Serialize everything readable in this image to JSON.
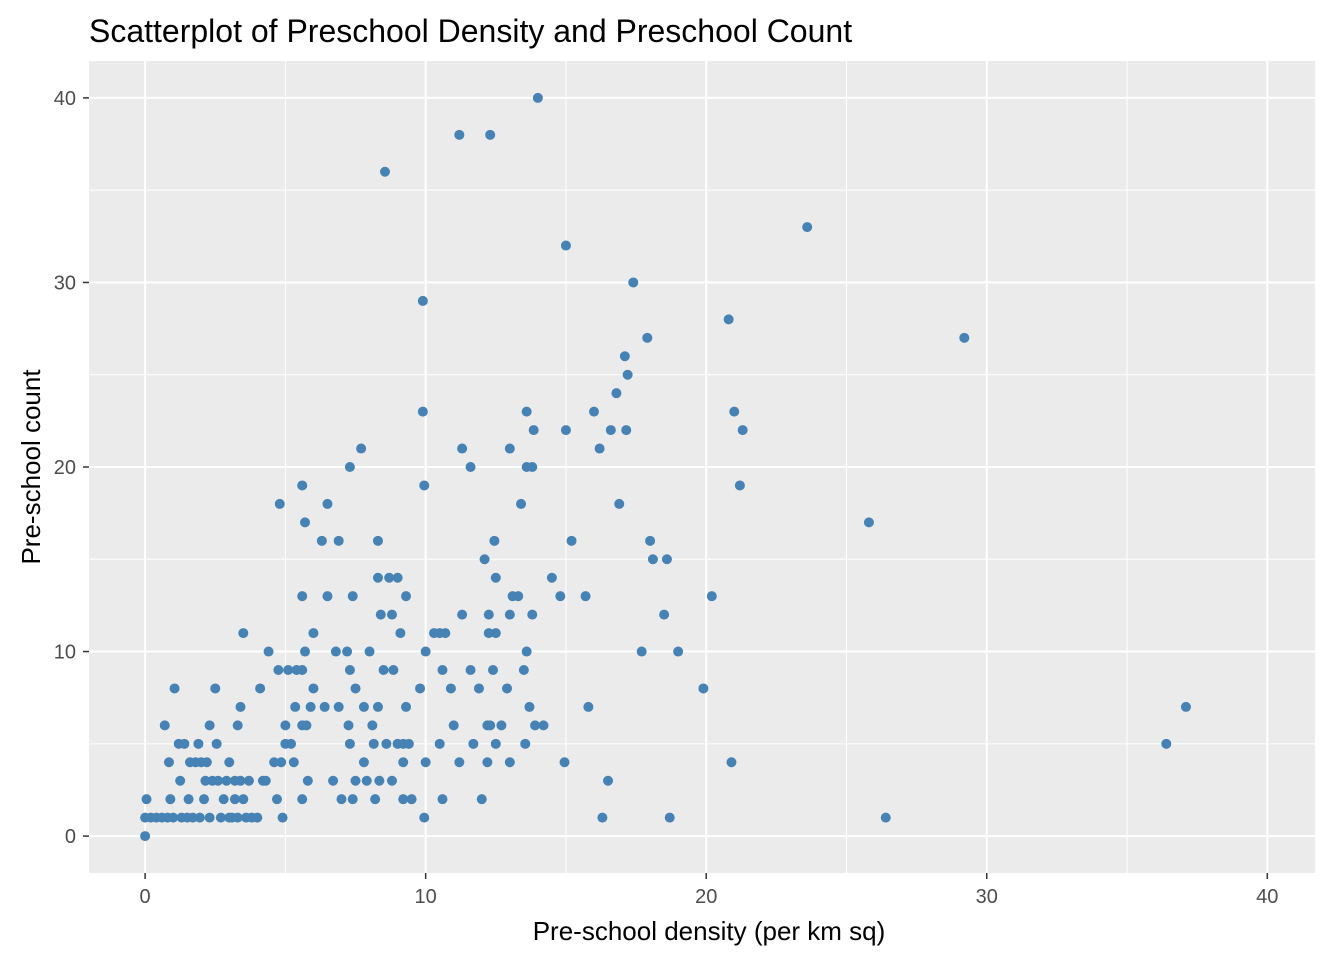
{
  "chart_data": {
    "type": "scatter",
    "title": "Scatterplot of Preschool Density and Preschool Count",
    "xlabel": "Pre-school density (per km sq)",
    "ylabel": "Pre-school count",
    "xlim": [
      -2.0,
      41.7
    ],
    "ylim": [
      -2.0,
      42.0
    ],
    "x_ticks": [
      0,
      10,
      20,
      30,
      40
    ],
    "y_ticks": [
      0,
      10,
      20,
      30,
      40
    ],
    "x_tick_labels": [
      "0",
      "10",
      "20",
      "30",
      "40"
    ],
    "y_tick_labels": [
      "0",
      "10",
      "20",
      "30",
      "40"
    ],
    "grid": true,
    "colors": {
      "point": "#4682b4",
      "panel": "#ebebeb",
      "grid": "#ffffff"
    },
    "points": [
      {
        "x": 0.0,
        "y": 0
      },
      {
        "x": 0.0,
        "y": 1
      },
      {
        "x": 0.05,
        "y": 2
      },
      {
        "x": 0.2,
        "y": 1
      },
      {
        "x": 0.4,
        "y": 1
      },
      {
        "x": 0.6,
        "y": 1
      },
      {
        "x": 0.7,
        "y": 6
      },
      {
        "x": 0.8,
        "y": 1
      },
      {
        "x": 0.85,
        "y": 4
      },
      {
        "x": 0.9,
        "y": 2
      },
      {
        "x": 1.0,
        "y": 1
      },
      {
        "x": 1.05,
        "y": 8
      },
      {
        "x": 1.2,
        "y": 5
      },
      {
        "x": 1.25,
        "y": 3
      },
      {
        "x": 1.3,
        "y": 1
      },
      {
        "x": 1.4,
        "y": 5
      },
      {
        "x": 1.5,
        "y": 1
      },
      {
        "x": 1.55,
        "y": 2
      },
      {
        "x": 1.6,
        "y": 4
      },
      {
        "x": 1.7,
        "y": 1
      },
      {
        "x": 1.8,
        "y": 4
      },
      {
        "x": 1.9,
        "y": 5
      },
      {
        "x": 1.95,
        "y": 1
      },
      {
        "x": 2.0,
        "y": 4
      },
      {
        "x": 2.1,
        "y": 2
      },
      {
        "x": 2.15,
        "y": 3
      },
      {
        "x": 2.2,
        "y": 4
      },
      {
        "x": 2.3,
        "y": 1
      },
      {
        "x": 2.3,
        "y": 6
      },
      {
        "x": 2.4,
        "y": 3
      },
      {
        "x": 2.5,
        "y": 8
      },
      {
        "x": 2.55,
        "y": 5
      },
      {
        "x": 2.6,
        "y": 3
      },
      {
        "x": 2.7,
        "y": 1
      },
      {
        "x": 2.8,
        "y": 2
      },
      {
        "x": 2.9,
        "y": 3
      },
      {
        "x": 3.0,
        "y": 4
      },
      {
        "x": 3.0,
        "y": 1
      },
      {
        "x": 3.1,
        "y": 1
      },
      {
        "x": 3.2,
        "y": 3
      },
      {
        "x": 3.2,
        "y": 2
      },
      {
        "x": 3.3,
        "y": 6
      },
      {
        "x": 3.3,
        "y": 1
      },
      {
        "x": 3.4,
        "y": 7
      },
      {
        "x": 3.4,
        "y": 3
      },
      {
        "x": 3.5,
        "y": 2
      },
      {
        "x": 3.5,
        "y": 11
      },
      {
        "x": 3.6,
        "y": 1
      },
      {
        "x": 3.7,
        "y": 3
      },
      {
        "x": 3.8,
        "y": 1
      },
      {
        "x": 4.0,
        "y": 1
      },
      {
        "x": 4.1,
        "y": 8
      },
      {
        "x": 4.2,
        "y": 3
      },
      {
        "x": 4.3,
        "y": 3
      },
      {
        "x": 4.4,
        "y": 10
      },
      {
        "x": 4.6,
        "y": 4
      },
      {
        "x": 4.7,
        "y": 2
      },
      {
        "x": 4.75,
        "y": 9
      },
      {
        "x": 4.8,
        "y": 18
      },
      {
        "x": 4.85,
        "y": 4
      },
      {
        "x": 4.9,
        "y": 1
      },
      {
        "x": 5.0,
        "y": 5
      },
      {
        "x": 5.0,
        "y": 6
      },
      {
        "x": 5.1,
        "y": 9
      },
      {
        "x": 5.2,
        "y": 5
      },
      {
        "x": 5.3,
        "y": 4
      },
      {
        "x": 5.35,
        "y": 7
      },
      {
        "x": 5.4,
        "y": 9
      },
      {
        "x": 5.6,
        "y": 9
      },
      {
        "x": 5.6,
        "y": 6
      },
      {
        "x": 5.6,
        "y": 13
      },
      {
        "x": 5.6,
        "y": 19
      },
      {
        "x": 5.6,
        "y": 2
      },
      {
        "x": 5.7,
        "y": 10
      },
      {
        "x": 5.7,
        "y": 17
      },
      {
        "x": 5.75,
        "y": 6
      },
      {
        "x": 5.8,
        "y": 3
      },
      {
        "x": 5.9,
        "y": 7
      },
      {
        "x": 6.0,
        "y": 11
      },
      {
        "x": 6.0,
        "y": 8
      },
      {
        "x": 6.3,
        "y": 16
      },
      {
        "x": 6.4,
        "y": 7
      },
      {
        "x": 6.5,
        "y": 13
      },
      {
        "x": 6.5,
        "y": 18
      },
      {
        "x": 6.7,
        "y": 3
      },
      {
        "x": 6.8,
        "y": 10
      },
      {
        "x": 6.9,
        "y": 16
      },
      {
        "x": 6.9,
        "y": 7
      },
      {
        "x": 7.0,
        "y": 2
      },
      {
        "x": 7.2,
        "y": 10
      },
      {
        "x": 7.25,
        "y": 6
      },
      {
        "x": 7.3,
        "y": 9
      },
      {
        "x": 7.3,
        "y": 5
      },
      {
        "x": 7.3,
        "y": 20
      },
      {
        "x": 7.4,
        "y": 13
      },
      {
        "x": 7.4,
        "y": 2
      },
      {
        "x": 7.5,
        "y": 3
      },
      {
        "x": 7.5,
        "y": 8
      },
      {
        "x": 7.7,
        "y": 21
      },
      {
        "x": 7.8,
        "y": 7
      },
      {
        "x": 7.8,
        "y": 4
      },
      {
        "x": 7.9,
        "y": 3
      },
      {
        "x": 8.0,
        "y": 10
      },
      {
        "x": 8.1,
        "y": 6
      },
      {
        "x": 8.15,
        "y": 5
      },
      {
        "x": 8.2,
        "y": 2
      },
      {
        "x": 8.3,
        "y": 16
      },
      {
        "x": 8.3,
        "y": 14
      },
      {
        "x": 8.3,
        "y": 7
      },
      {
        "x": 8.35,
        "y": 3
      },
      {
        "x": 8.4,
        "y": 12
      },
      {
        "x": 8.5,
        "y": 9
      },
      {
        "x": 8.55,
        "y": 36
      },
      {
        "x": 8.6,
        "y": 5
      },
      {
        "x": 8.7,
        "y": 14
      },
      {
        "x": 8.8,
        "y": 3
      },
      {
        "x": 8.8,
        "y": 12
      },
      {
        "x": 8.85,
        "y": 9
      },
      {
        "x": 9.0,
        "y": 14
      },
      {
        "x": 9.0,
        "y": 5
      },
      {
        "x": 9.1,
        "y": 11
      },
      {
        "x": 9.2,
        "y": 5
      },
      {
        "x": 9.2,
        "y": 2
      },
      {
        "x": 9.2,
        "y": 4
      },
      {
        "x": 9.3,
        "y": 7
      },
      {
        "x": 9.3,
        "y": 13
      },
      {
        "x": 9.4,
        "y": 5
      },
      {
        "x": 9.5,
        "y": 2
      },
      {
        "x": 9.8,
        "y": 8
      },
      {
        "x": 9.9,
        "y": 23
      },
      {
        "x": 9.9,
        "y": 29
      },
      {
        "x": 9.95,
        "y": 1
      },
      {
        "x": 9.95,
        "y": 19
      },
      {
        "x": 10.0,
        "y": 10
      },
      {
        "x": 10.0,
        "y": 4
      },
      {
        "x": 10.3,
        "y": 11
      },
      {
        "x": 10.5,
        "y": 11
      },
      {
        "x": 10.5,
        "y": 5
      },
      {
        "x": 10.6,
        "y": 9
      },
      {
        "x": 10.6,
        "y": 2
      },
      {
        "x": 10.7,
        "y": 11
      },
      {
        "x": 10.9,
        "y": 8
      },
      {
        "x": 11.0,
        "y": 6
      },
      {
        "x": 11.2,
        "y": 4
      },
      {
        "x": 11.2,
        "y": 38
      },
      {
        "x": 11.3,
        "y": 12
      },
      {
        "x": 11.3,
        "y": 21
      },
      {
        "x": 11.6,
        "y": 9
      },
      {
        "x": 11.6,
        "y": 20
      },
      {
        "x": 11.7,
        "y": 5
      },
      {
        "x": 11.9,
        "y": 8
      },
      {
        "x": 12.0,
        "y": 2
      },
      {
        "x": 12.1,
        "y": 15
      },
      {
        "x": 12.2,
        "y": 4
      },
      {
        "x": 12.2,
        "y": 6
      },
      {
        "x": 12.25,
        "y": 11
      },
      {
        "x": 12.25,
        "y": 12
      },
      {
        "x": 12.3,
        "y": 38
      },
      {
        "x": 12.3,
        "y": 6
      },
      {
        "x": 12.4,
        "y": 9
      },
      {
        "x": 12.45,
        "y": 16
      },
      {
        "x": 12.5,
        "y": 14
      },
      {
        "x": 12.5,
        "y": 11
      },
      {
        "x": 12.5,
        "y": 5
      },
      {
        "x": 12.7,
        "y": 6
      },
      {
        "x": 12.9,
        "y": 8
      },
      {
        "x": 13.0,
        "y": 12
      },
      {
        "x": 13.0,
        "y": 21
      },
      {
        "x": 13.0,
        "y": 4
      },
      {
        "x": 13.1,
        "y": 13
      },
      {
        "x": 13.3,
        "y": 13
      },
      {
        "x": 13.4,
        "y": 18
      },
      {
        "x": 13.5,
        "y": 9
      },
      {
        "x": 13.55,
        "y": 5
      },
      {
        "x": 13.6,
        "y": 10
      },
      {
        "x": 13.6,
        "y": 23
      },
      {
        "x": 13.6,
        "y": 20
      },
      {
        "x": 13.7,
        "y": 7
      },
      {
        "x": 13.8,
        "y": 20
      },
      {
        "x": 13.8,
        "y": 12
      },
      {
        "x": 13.85,
        "y": 22
      },
      {
        "x": 13.9,
        "y": 6
      },
      {
        "x": 14.0,
        "y": 40
      },
      {
        "x": 14.2,
        "y": 6
      },
      {
        "x": 14.5,
        "y": 14
      },
      {
        "x": 14.8,
        "y": 13
      },
      {
        "x": 14.95,
        "y": 4
      },
      {
        "x": 15.0,
        "y": 32
      },
      {
        "x": 15.0,
        "y": 22
      },
      {
        "x": 15.2,
        "y": 16
      },
      {
        "x": 15.7,
        "y": 13
      },
      {
        "x": 15.8,
        "y": 7
      },
      {
        "x": 16.0,
        "y": 23
      },
      {
        "x": 16.2,
        "y": 21
      },
      {
        "x": 16.3,
        "y": 1
      },
      {
        "x": 16.5,
        "y": 3
      },
      {
        "x": 16.6,
        "y": 22
      },
      {
        "x": 16.8,
        "y": 24
      },
      {
        "x": 16.9,
        "y": 18
      },
      {
        "x": 17.1,
        "y": 26
      },
      {
        "x": 17.15,
        "y": 22
      },
      {
        "x": 17.2,
        "y": 25
      },
      {
        "x": 17.4,
        "y": 30
      },
      {
        "x": 17.7,
        "y": 10
      },
      {
        "x": 17.9,
        "y": 27
      },
      {
        "x": 18.0,
        "y": 16
      },
      {
        "x": 18.1,
        "y": 15
      },
      {
        "x": 18.5,
        "y": 12
      },
      {
        "x": 18.6,
        "y": 15
      },
      {
        "x": 18.7,
        "y": 1
      },
      {
        "x": 19.0,
        "y": 10
      },
      {
        "x": 19.9,
        "y": 8
      },
      {
        "x": 20.2,
        "y": 13
      },
      {
        "x": 20.8,
        "y": 28
      },
      {
        "x": 20.9,
        "y": 4
      },
      {
        "x": 21.0,
        "y": 23
      },
      {
        "x": 21.2,
        "y": 19
      },
      {
        "x": 21.3,
        "y": 22
      },
      {
        "x": 23.6,
        "y": 33
      },
      {
        "x": 25.8,
        "y": 17
      },
      {
        "x": 26.4,
        "y": 1
      },
      {
        "x": 29.2,
        "y": 27
      },
      {
        "x": 36.4,
        "y": 5
      },
      {
        "x": 37.1,
        "y": 7
      }
    ]
  }
}
